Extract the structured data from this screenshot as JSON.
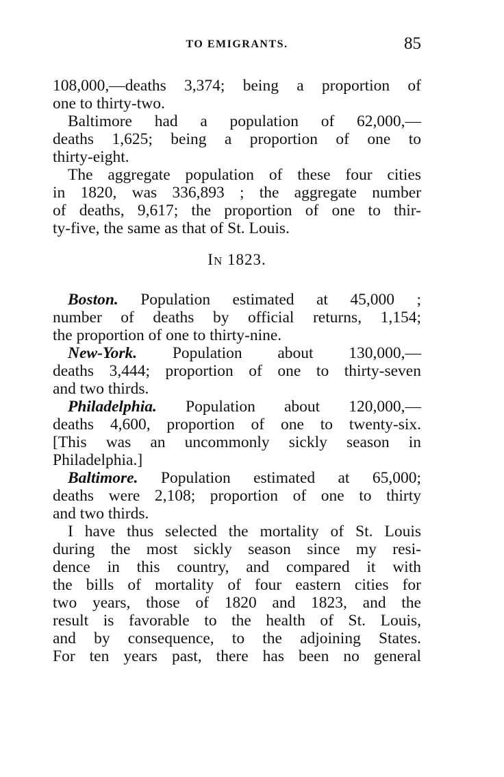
{
  "header": {
    "running_head": "TO EMIGRANTS.",
    "page_number": "85"
  },
  "section_heading": {
    "prefix": "I",
    "smallcaps": "N",
    "year": " 1823."
  },
  "block1": [
    {
      "text": "108,000,—deaths 3,374;  being a proportion of"
    },
    {
      "text": "one to thirty-two.",
      "last": true
    },
    {
      "text": "Baltimore  had  a  population  of  62,000,—",
      "indent": true
    },
    {
      "text": "deaths  1,625;  being  a  proportion  of  one  to"
    },
    {
      "text": "thirty-eight.",
      "last": true
    },
    {
      "text": "The aggregate population of these four cities",
      "indent": true
    },
    {
      "text": "in 1820, was 336,893 ;  the  aggregate  number"
    },
    {
      "text": "of deaths, 9,617;  the proportion of one to thir-"
    },
    {
      "text": "ty-five, the same as that of St. Louis.",
      "last": true
    }
  ],
  "block2": [
    {
      "lead": "Boston.",
      "text": "  Population  estimated  at  45,000 ;",
      "indent": true
    },
    {
      "text": "number  of  deaths  by  official  returns,  1,154;"
    },
    {
      "text": "the proportion of one to thirty-nine.",
      "last": true
    },
    {
      "lead": "New-York.",
      "text": "   Population  about  130,000,—",
      "indent": true
    },
    {
      "text": "deaths 3,444;  proportion of one to thirty-seven"
    },
    {
      "text": "and two thirds.",
      "last": true
    },
    {
      "lead": "Philadelphia.",
      "text": "  Population  about  120,000,—",
      "indent": true
    },
    {
      "text": "deaths 4,600,  proportion of  one to twenty-six."
    },
    {
      "text": "[This  was  an  uncommonly  sickly  season  in"
    },
    {
      "text": "Philadelphia.]",
      "last": true
    },
    {
      "lead": "Baltimore.",
      "text": "  Population estimated at  65,000;",
      "indent": true
    },
    {
      "text": "deaths were 2,108;  proportion of one to thirty"
    },
    {
      "text": "and two thirds.",
      "last": true
    },
    {
      "text": "I have thus selected the mortality of St. Louis",
      "indent": true
    },
    {
      "text": "during  the  most  sickly  season  since  my  resi-"
    },
    {
      "text": "dence  in  this  country,  and  compared  it  with"
    },
    {
      "text": "the bills of  mortality of four eastern  cities  for"
    },
    {
      "text": "two  years,  those  of  1820  and  1823,  and  the"
    },
    {
      "text": "result  is favorable  to the health  of  St. Louis,"
    },
    {
      "text": "and  by  consequence,  to  the  adjoining  States."
    },
    {
      "text": "For ten years past, there has been  no general"
    }
  ]
}
